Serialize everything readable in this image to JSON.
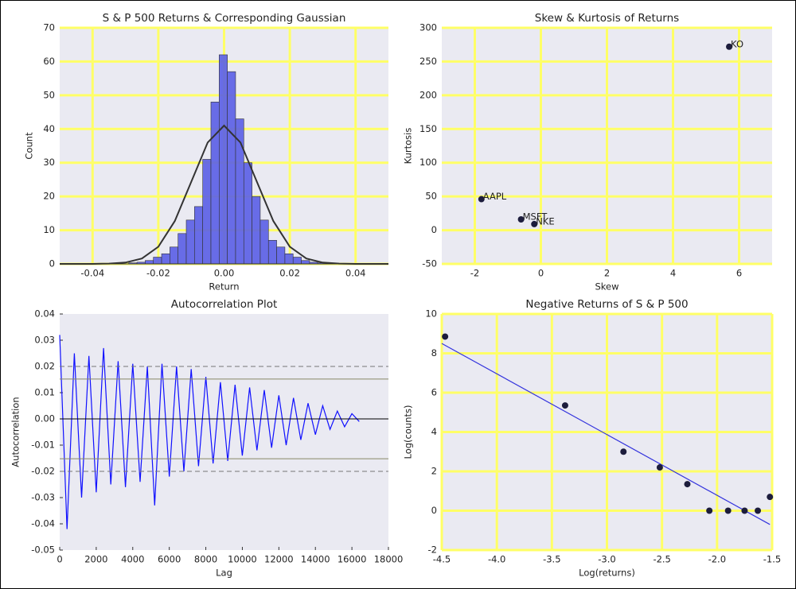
{
  "chart_data": [
    {
      "type": "histogram",
      "title": "S & P 500 Returns & Corresponding Gaussian",
      "xlabel": "Return",
      "ylabel": "Count",
      "grid": true,
      "color": "#5a5ee6",
      "bins": [
        -0.029,
        -0.0265,
        -0.024,
        -0.0215,
        -0.019,
        -0.0165,
        -0.014,
        -0.0115,
        -0.009,
        -0.0065,
        -0.004,
        -0.0015,
        0.001,
        0.0035,
        0.006,
        0.0085,
        0.011,
        0.0135,
        0.016,
        0.0185,
        0.021,
        0.0235,
        0.026,
        0.0285,
        0.031
      ],
      "values": [
        0.3,
        0.5,
        1,
        2,
        3,
        5,
        9,
        13,
        17,
        31,
        48,
        62,
        57,
        43,
        30,
        20,
        13,
        7,
        5,
        3,
        2,
        1,
        0.5,
        0.3
      ],
      "curve": {
        "x": [
          -0.05,
          -0.045,
          -0.04,
          -0.035,
          -0.03,
          -0.025,
          -0.02,
          -0.015,
          -0.01,
          -0.005,
          0,
          0.005,
          0.01,
          0.015,
          0.02,
          0.025,
          0.03,
          0.035,
          0.04,
          0.045,
          0.05
        ],
        "values": [
          0,
          0,
          0,
          0.1,
          0.4,
          1.6,
          5.1,
          12.7,
          24.3,
          36,
          41,
          36,
          24.3,
          12.7,
          5.1,
          1.6,
          0.4,
          0.1,
          0,
          0,
          0
        ]
      },
      "xlim": [
        -0.05,
        0.05
      ],
      "xticks": [
        -0.04,
        -0.02,
        {
          "value": 0,
          "label": "0.00"
        },
        0.02,
        0.04
      ],
      "ylim": [
        0,
        70
      ],
      "yticks": [
        0,
        10,
        20,
        30,
        40,
        50,
        60,
        70
      ]
    },
    {
      "type": "scatter",
      "title": "Skew & Kurtosis of Returns",
      "xlabel": "Skew",
      "ylabel": "Kurtosis",
      "grid": true,
      "color": "#1c1c3c",
      "labels": [
        "KO",
        "AAPL",
        "MSFT",
        "NKE"
      ],
      "x": [
        5.7,
        -1.8,
        -0.6,
        -0.2
      ],
      "values": [
        272,
        46,
        16,
        9
      ],
      "xlim": [
        -3,
        7
      ],
      "xticks": [
        -2,
        0,
        2,
        4,
        6
      ],
      "ylim": [
        -50,
        300
      ],
      "yticks": [
        -50,
        0,
        50,
        100,
        150,
        200,
        250,
        300
      ]
    },
    {
      "type": "line",
      "title": "Autocorrelation Plot",
      "xlabel": "Lag",
      "ylabel": "Autocorrelation",
      "grid": false,
      "color": "#1010ff",
      "x": [
        0,
        400,
        800,
        1200,
        1600,
        2000,
        2400,
        2800,
        3200,
        3600,
        4000,
        4400,
        4800,
        5200,
        5600,
        6000,
        6400,
        6800,
        7200,
        7600,
        8000,
        8400,
        8800,
        9200,
        9600,
        10000,
        10400,
        10800,
        11200,
        11600,
        12000,
        12400,
        12800,
        13200,
        13600,
        14000,
        14400,
        14800,
        15200,
        15600,
        16000,
        16400
      ],
      "values": [
        0.032,
        -0.042,
        0.025,
        -0.03,
        0.024,
        -0.028,
        0.027,
        -0.025,
        0.022,
        -0.026,
        0.021,
        -0.024,
        0.02,
        -0.033,
        0.021,
        -0.022,
        0.02,
        -0.02,
        0.019,
        -0.018,
        0.016,
        -0.017,
        0.014,
        -0.016,
        0.013,
        -0.014,
        0.012,
        -0.012,
        0.011,
        -0.011,
        0.009,
        -0.01,
        0.008,
        -0.008,
        0.006,
        -0.006,
        0.005,
        -0.004,
        0.003,
        -0.003,
        0.002,
        -0.001
      ],
      "hlines": [
        {
          "value": 0.02,
          "style": "dashed"
        },
        {
          "value": 0.0152,
          "style": "solid"
        },
        {
          "value": 0,
          "style": "zero"
        },
        {
          "value": -0.0152,
          "style": "solid"
        },
        {
          "value": -0.02,
          "style": "dashed"
        }
      ],
      "xlim": [
        0,
        18000
      ],
      "xticks": [
        0,
        2000,
        4000,
        6000,
        8000,
        10000,
        12000,
        14000,
        16000,
        18000
      ],
      "ylim": [
        -0.05,
        0.04
      ],
      "yticks": [
        -0.05,
        -0.04,
        -0.03,
        -0.02,
        -0.01,
        {
          "value": 0,
          "label": "0.00"
        },
        0.01,
        0.02,
        0.03,
        0.04
      ]
    },
    {
      "type": "scatter",
      "title": "Negative Returns of S & P 500",
      "xlabel": "Log(returns)",
      "ylabel": "Log(counts)",
      "grid": true,
      "color": "#1c1c3c",
      "x": [
        -4.47,
        -3.38,
        -2.85,
        -2.52,
        -2.27,
        -2.07,
        -1.9,
        -1.75,
        -1.63,
        -1.52
      ],
      "values": [
        8.85,
        5.35,
        3,
        2.2,
        1.35,
        0,
        0,
        0,
        0,
        0.7
      ],
      "fit": {
        "x": [
          -4.5,
          -1.52
        ],
        "values": [
          8.5,
          -0.7
        ],
        "color": "#3333dd"
      },
      "xlim": [
        -4.5,
        -1.5
      ],
      "xticks": [
        -4.5,
        {
          "value": -4,
          "label": "-4.0"
        },
        -3.5,
        {
          "value": -3,
          "label": "-3.0"
        },
        -2.5,
        {
          "value": -2,
          "label": "-2.0"
        },
        -1.5
      ],
      "ylim": [
        -2,
        10
      ],
      "yticks": [
        -2,
        0,
        2,
        4,
        6,
        8,
        10
      ]
    }
  ]
}
